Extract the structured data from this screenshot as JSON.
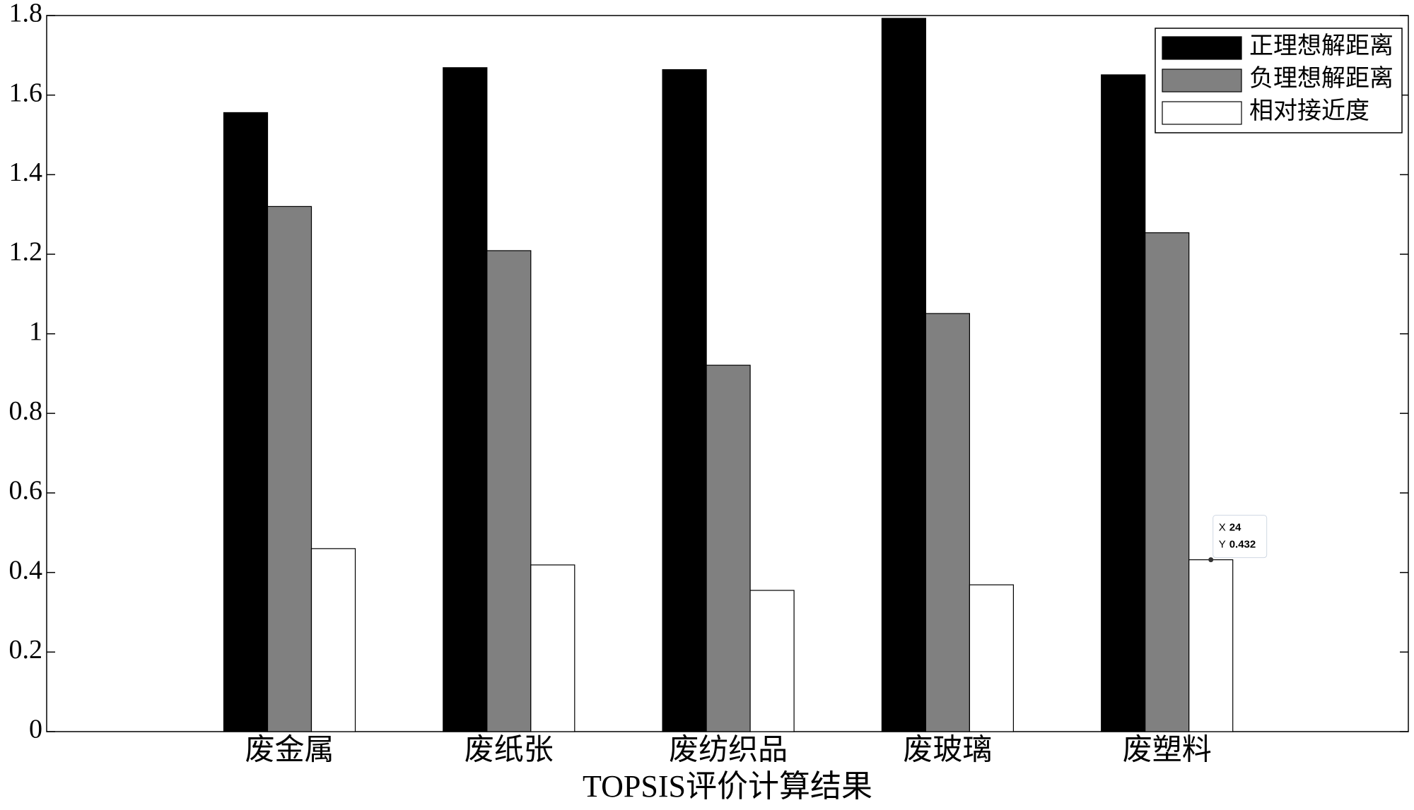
{
  "chart_data": {
    "type": "bar",
    "xlabel": "TOPSIS评价计算结果",
    "categories": [
      "废金属",
      "废纸张",
      "废纺织品",
      "废玻璃",
      "废塑料"
    ],
    "series": [
      {
        "name": "正理想解距离",
        "color": "#000000",
        "values": [
          1.556,
          1.669,
          1.664,
          1.793,
          1.651
        ]
      },
      {
        "name": "负理想解距离",
        "color": "#808080",
        "values": [
          1.32,
          1.209,
          0.921,
          1.051,
          1.254
        ]
      },
      {
        "name": "相对接近度",
        "color": "#ffffff",
        "values": [
          0.46,
          0.419,
          0.355,
          0.369,
          0.432
        ]
      }
    ],
    "ylim": [
      0,
      1.8
    ],
    "yticks": [
      0,
      0.2,
      0.4,
      0.6,
      0.8,
      1,
      1.2,
      1.4,
      1.6,
      1.8
    ],
    "grid": false,
    "legend": "top-right",
    "datatip": {
      "x_label": "X",
      "x": 24,
      "y_label": "Y",
      "y": 0.432
    }
  }
}
